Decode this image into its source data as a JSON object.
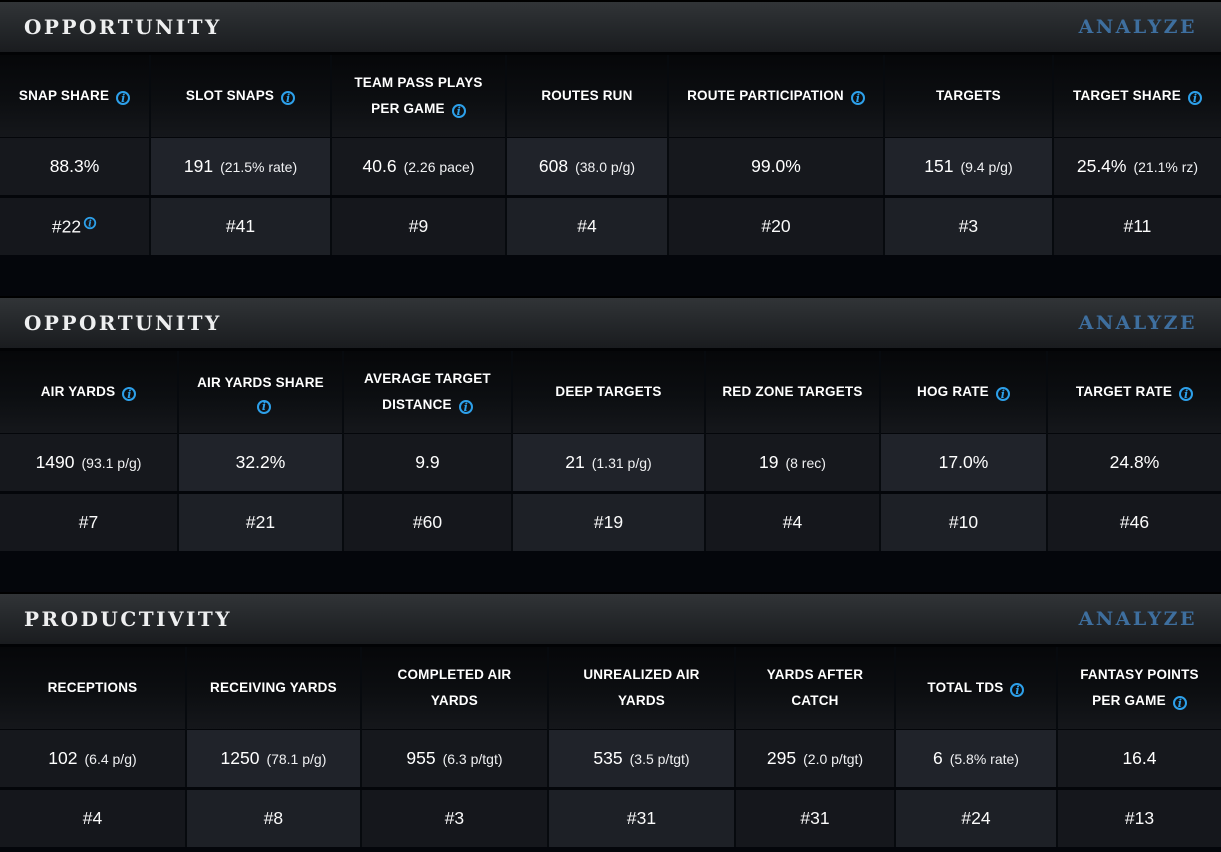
{
  "icons": {
    "info_glyph": "i"
  },
  "colors": {
    "info_icon_blue": "#2da0ea",
    "analyze_link_blue": "#3e6f9f",
    "section_bar_top": "#313437",
    "section_bar_bottom": "#1a1c1f",
    "cell_dark": "#16181d",
    "cell_light": "#20232a",
    "page_background": "#04060b"
  },
  "sections": [
    {
      "title": "OPPORTUNITY",
      "analyze_label": "ANALYZE",
      "columns": [
        {
          "label": "SNAP SHARE",
          "info": true,
          "value": "88.3%",
          "sub": "",
          "rank": "#22",
          "rank_info": true
        },
        {
          "label": "SLOT SNAPS",
          "info": true,
          "value": "191",
          "sub": "(21.5% rate)",
          "rank": "#41",
          "rank_info": false
        },
        {
          "label": "TEAM PASS PLAYS PER GAME",
          "info": true,
          "value": "40.6",
          "sub": "(2.26 pace)",
          "rank": "#9",
          "rank_info": false
        },
        {
          "label": "ROUTES RUN",
          "info": false,
          "value": "608",
          "sub": "(38.0 p/g)",
          "rank": "#4",
          "rank_info": false
        },
        {
          "label": "ROUTE PARTICIPATION",
          "info": true,
          "value": "99.0%",
          "sub": "",
          "rank": "#20",
          "rank_info": false
        },
        {
          "label": "TARGETS",
          "info": false,
          "value": "151",
          "sub": "(9.4 p/g)",
          "rank": "#3",
          "rank_info": false
        },
        {
          "label": "TARGET SHARE",
          "info": true,
          "value": "25.4%",
          "sub": "(21.1% rz)",
          "rank": "#11",
          "rank_info": false
        }
      ]
    },
    {
      "title": "OPPORTUNITY",
      "analyze_label": "ANALYZE",
      "columns": [
        {
          "label": "AIR YARDS",
          "info": true,
          "value": "1490",
          "sub": "(93.1 p/g)",
          "rank": "#7",
          "rank_info": false
        },
        {
          "label": "AIR YARDS SHARE",
          "info": true,
          "value": "32.2%",
          "sub": "",
          "rank": "#21",
          "rank_info": false
        },
        {
          "label": "AVERAGE TARGET DISTANCE",
          "info": true,
          "value": "9.9",
          "sub": "",
          "rank": "#60",
          "rank_info": false
        },
        {
          "label": "DEEP TARGETS",
          "info": false,
          "value": "21",
          "sub": "(1.31 p/g)",
          "rank": "#19",
          "rank_info": false
        },
        {
          "label": "RED ZONE TARGETS",
          "info": false,
          "value": "19",
          "sub": "(8 rec)",
          "rank": "#4",
          "rank_info": false
        },
        {
          "label": "HOG RATE",
          "info": true,
          "value": "17.0%",
          "sub": "",
          "rank": "#10",
          "rank_info": false
        },
        {
          "label": "TARGET RATE",
          "info": true,
          "value": "24.8%",
          "sub": "",
          "rank": "#46",
          "rank_info": false
        }
      ]
    },
    {
      "title": "PRODUCTIVITY",
      "analyze_label": "ANALYZE",
      "columns": [
        {
          "label": "RECEPTIONS",
          "info": false,
          "value": "102",
          "sub": "(6.4 p/g)",
          "rank": "#4",
          "rank_info": false
        },
        {
          "label": "RECEIVING YARDS",
          "info": false,
          "value": "1250",
          "sub": "(78.1 p/g)",
          "rank": "#8",
          "rank_info": false
        },
        {
          "label": "COMPLETED AIR YARDS",
          "info": false,
          "value": "955",
          "sub": "(6.3 p/tgt)",
          "rank": "#3",
          "rank_info": false
        },
        {
          "label": "UNREALIZED AIR YARDS",
          "info": false,
          "value": "535",
          "sub": "(3.5 p/tgt)",
          "rank": "#31",
          "rank_info": false
        },
        {
          "label": "YARDS AFTER CATCH",
          "info": false,
          "value": "295",
          "sub": "(2.0 p/tgt)",
          "rank": "#31",
          "rank_info": false
        },
        {
          "label": "TOTAL TDS",
          "info": true,
          "value": "6",
          "sub": "(5.8% rate)",
          "rank": "#24",
          "rank_info": false
        },
        {
          "label": "FANTASY POINTS PER GAME",
          "info": true,
          "value": "16.4",
          "sub": "",
          "rank": "#13",
          "rank_info": false
        }
      ]
    }
  ]
}
